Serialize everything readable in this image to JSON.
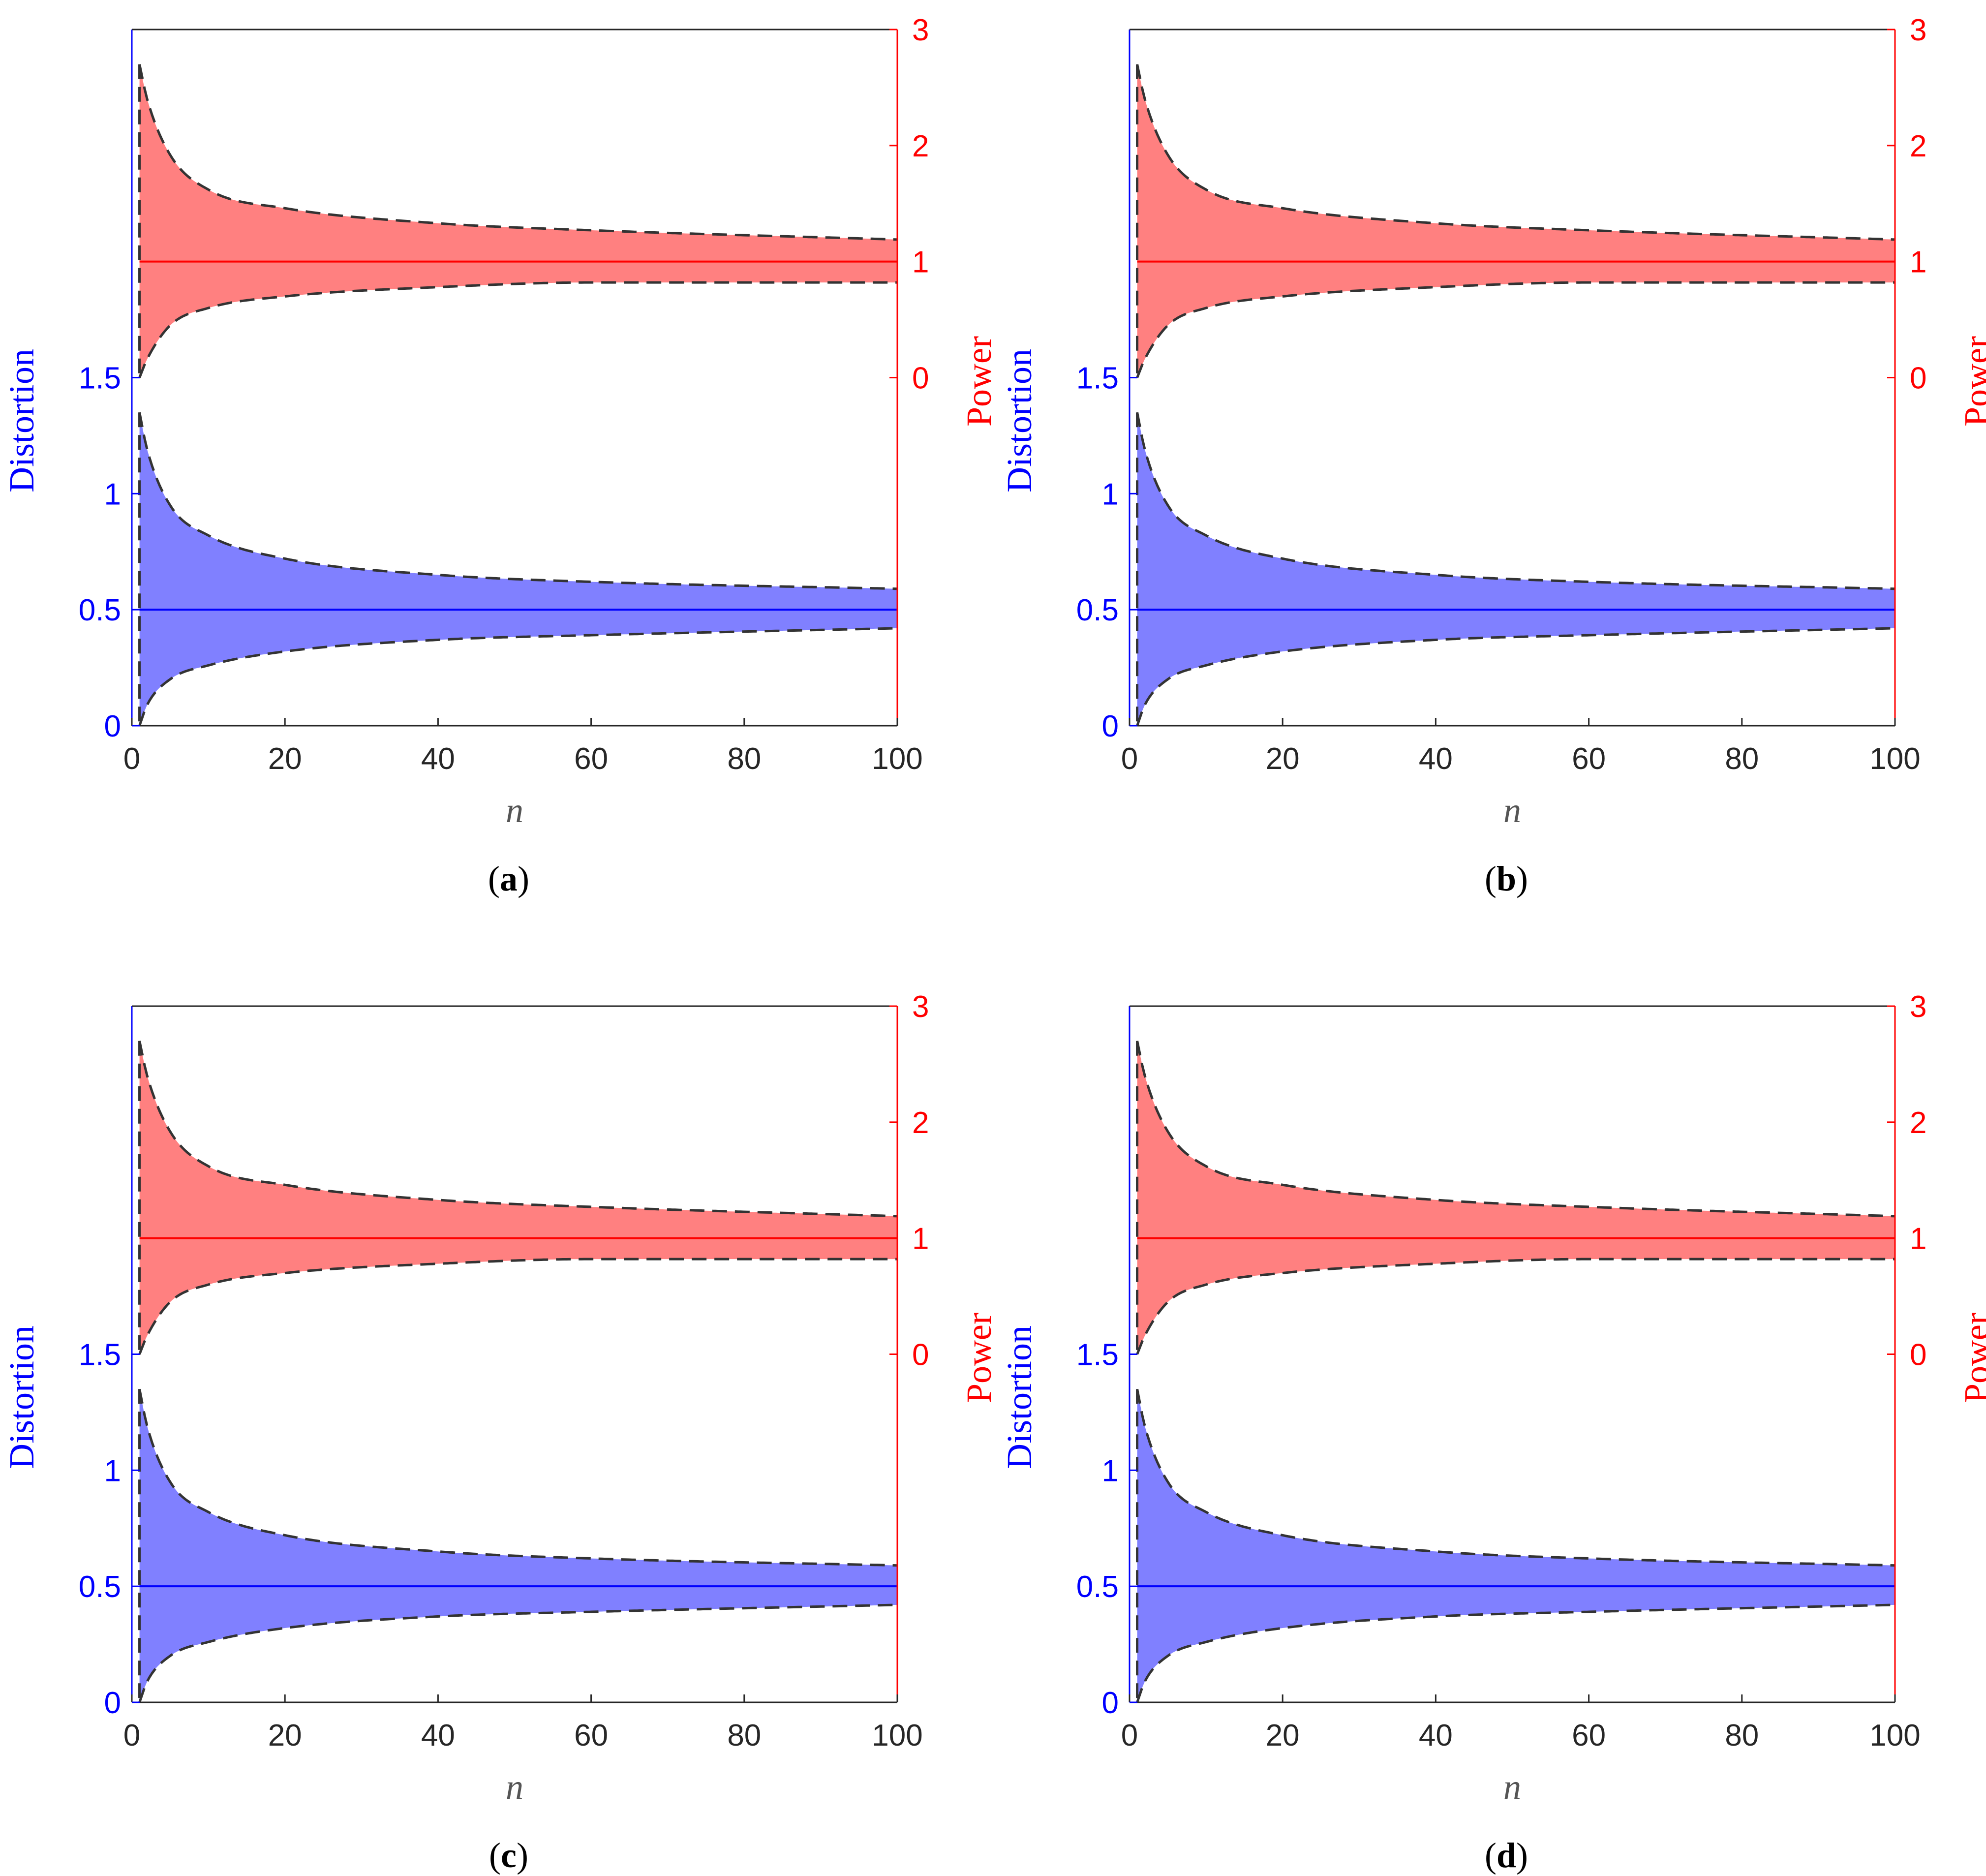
{
  "chart_data": [
    {
      "type": "area",
      "caption_label": "a",
      "xlabel": "n",
      "ylabel_left": "Distortion",
      "ylabel_right": "Power",
      "xlim": [
        0,
        100
      ],
      "xticks": [
        0,
        20,
        40,
        60,
        80,
        100
      ],
      "left_axis": {
        "range": [
          0,
          3
        ],
        "ticks": [
          0,
          0.5,
          1,
          1.5
        ],
        "color": "#0000ff"
      },
      "right_axis": {
        "range": [
          -3,
          3
        ],
        "ticks": [
          0,
          1,
          2,
          3
        ],
        "color": "#ff0000"
      },
      "series": [
        {
          "axis": "left",
          "fill_color": "#8080ff",
          "line_color": "#0000ff",
          "mean": 0.5,
          "band": {
            "n": [
              1,
              2,
              5,
              10,
              20,
              40,
              60,
              100
            ],
            "upper": [
              1.35,
              1.19,
              0.95,
              0.82,
              0.72,
              0.65,
              0.62,
              0.59
            ],
            "lower": [
              0.0,
              0.09,
              0.2,
              0.26,
              0.32,
              0.37,
              0.39,
              0.42
            ]
          }
        },
        {
          "axis": "right",
          "fill_color": "#ff8080",
          "line_color": "#ff0000",
          "mean": 1.0,
          "band": {
            "n": [
              1,
              2,
              5,
              10,
              20,
              40,
              60,
              100
            ],
            "upper": [
              2.7,
              2.4,
              1.92,
              1.62,
              1.46,
              1.33,
              1.27,
              1.19
            ],
            "lower": [
              0.0,
              0.16,
              0.45,
              0.6,
              0.7,
              0.78,
              0.82,
              0.82
            ]
          }
        }
      ]
    },
    {
      "type": "area",
      "caption_label": "b",
      "xlabel": "n",
      "ylabel_left": "Distortion",
      "ylabel_right": "Power",
      "xlim": [
        0,
        100
      ],
      "xticks": [
        0,
        20,
        40,
        60,
        80,
        100
      ],
      "left_axis": {
        "range": [
          0,
          3
        ],
        "ticks": [
          0,
          0.5,
          1,
          1.5
        ],
        "color": "#0000ff"
      },
      "right_axis": {
        "range": [
          -3,
          3
        ],
        "ticks": [
          0,
          1,
          2,
          3
        ],
        "color": "#ff0000"
      },
      "series": [
        {
          "axis": "left",
          "fill_color": "#8080ff",
          "line_color": "#0000ff",
          "mean": 0.5,
          "band": {
            "n": [
              1,
              2,
              5,
              10,
              20,
              40,
              60,
              100
            ],
            "upper": [
              1.35,
              1.19,
              0.95,
              0.82,
              0.72,
              0.65,
              0.62,
              0.59
            ],
            "lower": [
              0.0,
              0.09,
              0.2,
              0.26,
              0.32,
              0.37,
              0.39,
              0.42
            ]
          }
        },
        {
          "axis": "right",
          "fill_color": "#ff8080",
          "line_color": "#ff0000",
          "mean": 1.0,
          "band": {
            "n": [
              1,
              2,
              5,
              10,
              20,
              40,
              60,
              100
            ],
            "upper": [
              2.7,
              2.4,
              1.92,
              1.62,
              1.46,
              1.33,
              1.27,
              1.19
            ],
            "lower": [
              0.0,
              0.16,
              0.45,
              0.6,
              0.7,
              0.78,
              0.82,
              0.82
            ]
          }
        }
      ]
    },
    {
      "type": "area",
      "caption_label": "c",
      "xlabel": "n",
      "ylabel_left": "Distortion",
      "ylabel_right": "Power",
      "xlim": [
        0,
        100
      ],
      "xticks": [
        0,
        20,
        40,
        60,
        80,
        100
      ],
      "left_axis": {
        "range": [
          0,
          3
        ],
        "ticks": [
          0,
          0.5,
          1,
          1.5
        ],
        "color": "#0000ff"
      },
      "right_axis": {
        "range": [
          -3,
          3
        ],
        "ticks": [
          0,
          1,
          2,
          3
        ],
        "color": "#ff0000"
      },
      "series": [
        {
          "axis": "left",
          "fill_color": "#8080ff",
          "line_color": "#0000ff",
          "mean": 0.5,
          "band": {
            "n": [
              1,
              2,
              5,
              10,
              20,
              40,
              60,
              100
            ],
            "upper": [
              1.35,
              1.19,
              0.95,
              0.82,
              0.72,
              0.65,
              0.62,
              0.59
            ],
            "lower": [
              0.0,
              0.09,
              0.2,
              0.26,
              0.32,
              0.37,
              0.39,
              0.42
            ]
          }
        },
        {
          "axis": "right",
          "fill_color": "#ff8080",
          "line_color": "#ff0000",
          "mean": 1.0,
          "band": {
            "n": [
              1,
              2,
              5,
              10,
              20,
              40,
              60,
              100
            ],
            "upper": [
              2.7,
              2.4,
              1.92,
              1.62,
              1.46,
              1.33,
              1.27,
              1.19
            ],
            "lower": [
              0.0,
              0.16,
              0.45,
              0.6,
              0.7,
              0.78,
              0.82,
              0.82
            ]
          }
        }
      ]
    },
    {
      "type": "area",
      "caption_label": "d",
      "xlabel": "n",
      "ylabel_left": "Distortion",
      "ylabel_right": "Power",
      "xlim": [
        0,
        100
      ],
      "xticks": [
        0,
        20,
        40,
        60,
        80,
        100
      ],
      "left_axis": {
        "range": [
          0,
          3
        ],
        "ticks": [
          0,
          0.5,
          1,
          1.5
        ],
        "color": "#0000ff"
      },
      "right_axis": {
        "range": [
          -3,
          3
        ],
        "ticks": [
          0,
          1,
          2,
          3
        ],
        "color": "#ff0000"
      },
      "series": [
        {
          "axis": "left",
          "fill_color": "#8080ff",
          "line_color": "#0000ff",
          "mean": 0.5,
          "band": {
            "n": [
              1,
              2,
              5,
              10,
              20,
              40,
              60,
              100
            ],
            "upper": [
              1.35,
              1.19,
              0.95,
              0.82,
              0.72,
              0.65,
              0.62,
              0.59
            ],
            "lower": [
              0.0,
              0.09,
              0.2,
              0.26,
              0.32,
              0.37,
              0.39,
              0.42
            ]
          }
        },
        {
          "axis": "right",
          "fill_color": "#ff8080",
          "line_color": "#ff0000",
          "mean": 1.0,
          "band": {
            "n": [
              1,
              2,
              5,
              10,
              20,
              40,
              60,
              100
            ],
            "upper": [
              2.7,
              2.4,
              1.92,
              1.62,
              1.46,
              1.33,
              1.27,
              1.19
            ],
            "lower": [
              0.0,
              0.16,
              0.45,
              0.6,
              0.7,
              0.78,
              0.82,
              0.82
            ]
          }
        }
      ]
    }
  ]
}
